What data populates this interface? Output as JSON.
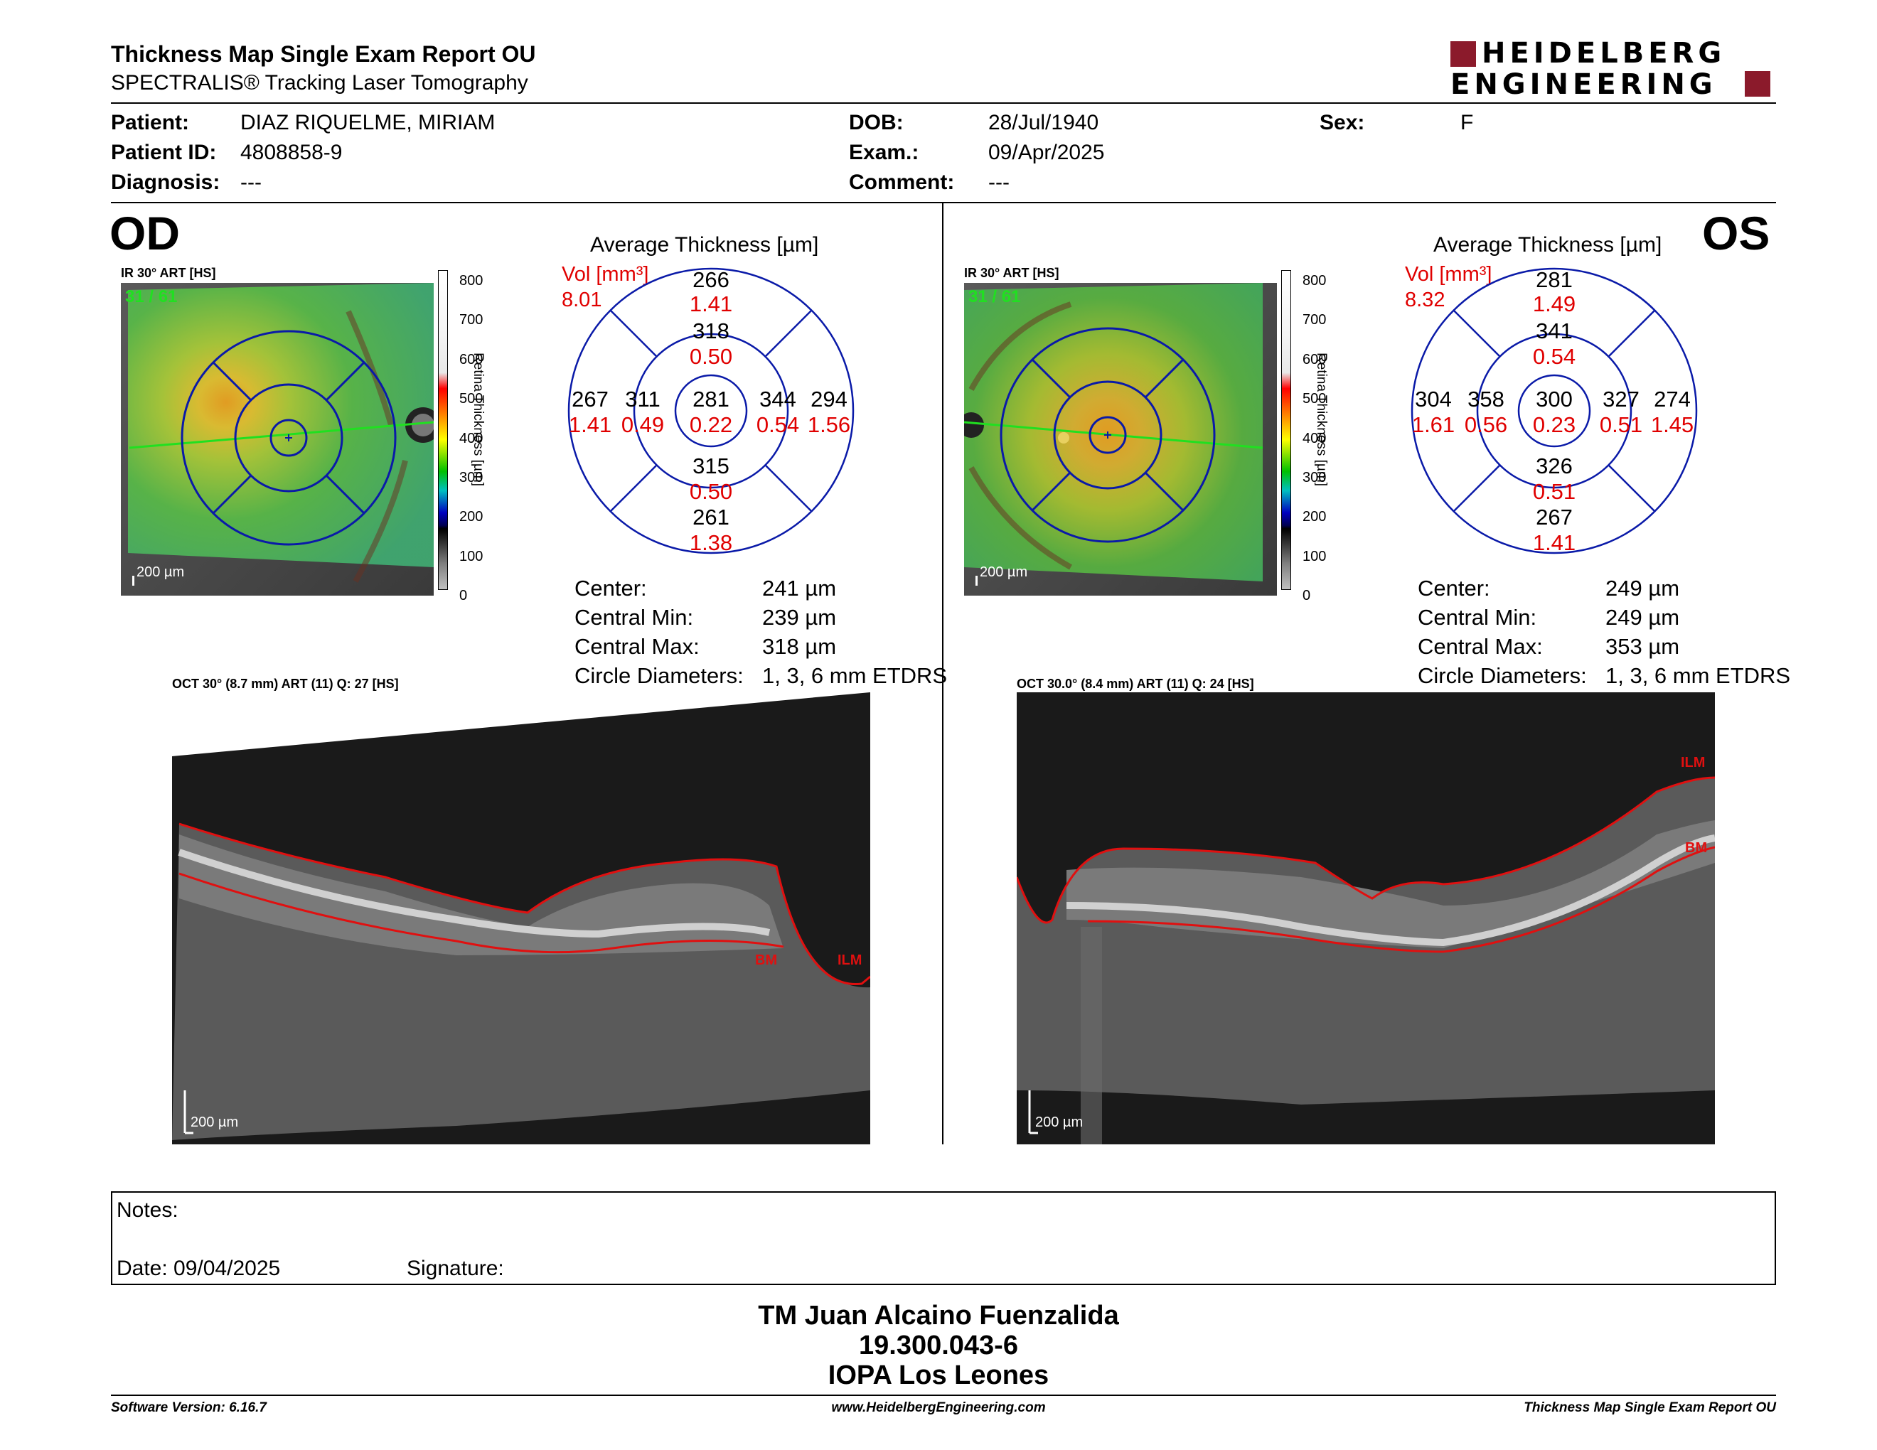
{
  "header": {
    "title": "Thickness Map Single Exam Report OU",
    "subtitle": "SPECTRALIS® Tracking Laser Tomography",
    "logo_line1": "HEIDELBERG",
    "logo_line2": "ENGINEERING",
    "brand_color": "#8b1a2b"
  },
  "patient": {
    "patient_label": "Patient:",
    "patient_value": "DIAZ RIQUELME, MIRIAM",
    "id_label": "Patient ID:",
    "id_value": "4808858-9",
    "diagnosis_label": "Diagnosis:",
    "diagnosis_value": "---",
    "dob_label": "DOB:",
    "dob_value": "28/Jul/1940",
    "exam_label": "Exam.:",
    "exam_value": "09/Apr/2025",
    "comment_label": "Comment:",
    "comment_value": "---",
    "sex_label": "Sex:",
    "sex_value": "F"
  },
  "od": {
    "eye": "OD",
    "ir_caption": "IR 30° ART [HS]",
    "frame_counter": "31 / 61",
    "scale": "200 µm",
    "chart_title": "Average Thickness [µm]",
    "vol_label": "Vol [mm³]",
    "vol_value": "8.01",
    "sectors": {
      "outer_sup": {
        "t": "266",
        "v": "1.41"
      },
      "inner_sup": {
        "t": "318",
        "v": "0.50"
      },
      "outer_temp": {
        "t": "267",
        "v": "1.41"
      },
      "inner_temp": {
        "t": "311",
        "v": "0.49"
      },
      "center": {
        "t": "281",
        "v": "0.22"
      },
      "inner_nasal": {
        "t": "344",
        "v": "0.54"
      },
      "outer_nasal": {
        "t": "294",
        "v": "1.56"
      },
      "inner_inf": {
        "t": "315",
        "v": "0.50"
      },
      "outer_inf": {
        "t": "261",
        "v": "1.38"
      }
    },
    "stats": [
      {
        "label": "Center:",
        "value": "241 µm"
      },
      {
        "label": "Central Min:",
        "value": "239 µm"
      },
      {
        "label": "Central Max:",
        "value": "318 µm"
      },
      {
        "label": "Circle Diameters:",
        "value": "1, 3, 6 mm ETDRS"
      }
    ],
    "oct_caption": "OCT 30° (8.7 mm) ART (11) Q: 27 [HS]",
    "ilm": "ILM",
    "bm": "BM",
    "oct_scale": "200 µm"
  },
  "os": {
    "eye": "OS",
    "ir_caption": "IR 30° ART [HS]",
    "frame_counter": "31 / 61",
    "scale": "200 µm",
    "chart_title": "Average Thickness [µm]",
    "vol_label": "Vol [mm³]",
    "vol_value": "8.32",
    "sectors": {
      "outer_sup": {
        "t": "281",
        "v": "1.49"
      },
      "inner_sup": {
        "t": "341",
        "v": "0.54"
      },
      "outer_temp": {
        "t": "304",
        "v": "1.61"
      },
      "inner_temp": {
        "t": "358",
        "v": "0.56"
      },
      "center": {
        "t": "300",
        "v": "0.23"
      },
      "inner_nasal": {
        "t": "327",
        "v": "0.51"
      },
      "outer_nasal": {
        "t": "274",
        "v": "1.45"
      },
      "inner_inf": {
        "t": "326",
        "v": "0.51"
      },
      "outer_inf": {
        "t": "267",
        "v": "1.41"
      }
    },
    "stats": [
      {
        "label": "Center:",
        "value": "249 µm"
      },
      {
        "label": "Central Min:",
        "value": "249 µm"
      },
      {
        "label": "Central Max:",
        "value": "353 µm"
      },
      {
        "label": "Circle Diameters:",
        "value": "1, 3, 6 mm ETDRS"
      }
    ],
    "oct_caption": "OCT 30.0° (8.4 mm) ART (11) Q: 24 [HS]",
    "ilm": "ILM",
    "bm": "BM",
    "oct_scale": "200 µm"
  },
  "colorbar": {
    "ticks": [
      "800",
      "700",
      "600",
      "500",
      "400",
      "300",
      "200",
      "100",
      "0"
    ],
    "label": "Retina Thickness [µm]"
  },
  "notes": {
    "notes_label": "Notes:",
    "date_label": "Date: 09/04/2025",
    "signature_label": "Signature:"
  },
  "signature_block": {
    "name": "TM Juan Alcaino Fuenzalida",
    "id": "19.300.043-6",
    "institution": "IOPA Los Leones"
  },
  "footer": {
    "software": "Software Version: 6.16.7",
    "website": "www.HeidelbergEngineering.com",
    "report": "Thickness Map Single Exam Report OU"
  },
  "colors": {
    "volume_red": "#e00000",
    "grid_blue": "#0a1aa8",
    "segment_line": "#e01010",
    "counter_green": "#20e020"
  }
}
